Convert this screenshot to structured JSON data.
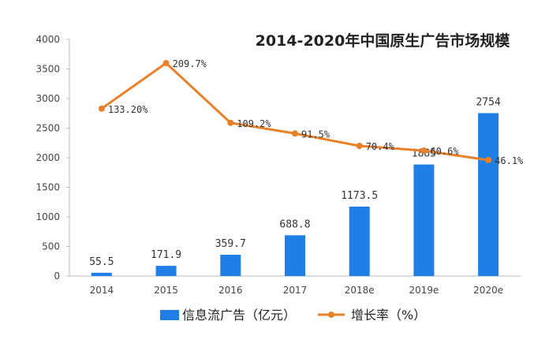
{
  "chart_data": {
    "type": "bar",
    "title": "2014-2020年中国原生广告市场规模",
    "categories": [
      "2014",
      "2015",
      "2016",
      "2017",
      "2018e",
      "2019e",
      "2020e"
    ],
    "ylim": [
      0,
      4000
    ],
    "yticks": [
      "4000",
      "3500",
      "3000",
      "2500",
      "2000",
      "1500",
      "1000",
      "500",
      "0"
    ],
    "grid": false,
    "legend_position": "bottom",
    "series": [
      {
        "name": "信息流广告（亿元）",
        "type": "bar",
        "color": "#1f7fe6",
        "values": [
          55.5,
          171.9,
          359.7,
          688.8,
          1173.5,
          1885,
          2754
        ],
        "labels": [
          "55.5",
          "171.9",
          "359.7",
          "688.8",
          "1173.5",
          "1885",
          "2754"
        ]
      },
      {
        "name": "增长率（%）",
        "type": "line",
        "color": "#e8822a",
        "values": [
          133.2,
          209.7,
          109.2,
          91.5,
          70.4,
          60.6,
          46.1
        ],
        "plot_values": [
          2830,
          3600,
          2590,
          2410,
          2200,
          2120,
          1960
        ],
        "labels": [
          "133.20%",
          "209.7%",
          "109.2%",
          "91.5%",
          "70.4%",
          "60.6%",
          "46.1%"
        ]
      }
    ]
  }
}
